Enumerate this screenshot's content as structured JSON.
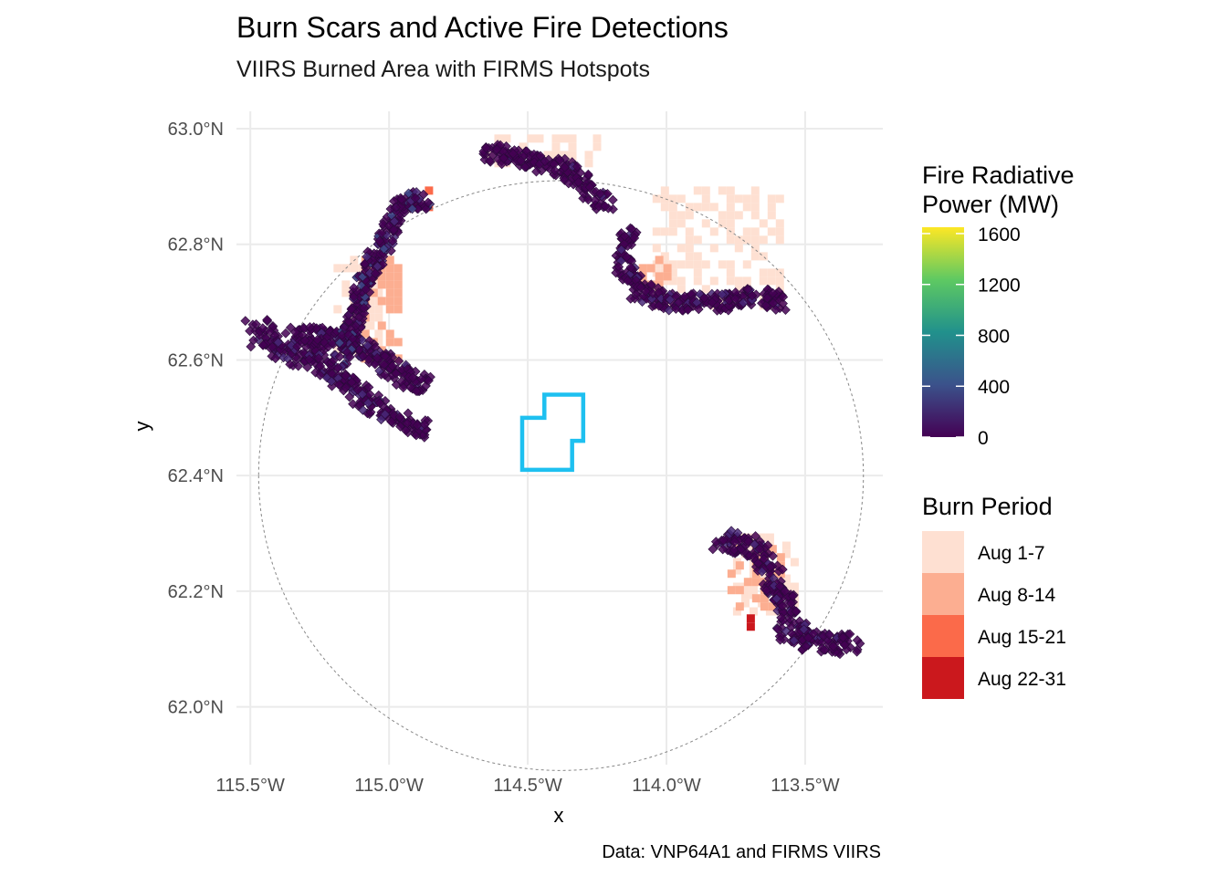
{
  "title": "Burn Scars and Active Fire Detections",
  "subtitle": "VIIRS Burned Area with FIRMS Hotspots",
  "caption": "Data: VNP64A1 and FIRMS VIIRS",
  "axes": {
    "x": {
      "label": "x",
      "range": [
        -115.55,
        -113.22
      ],
      "ticks": [
        -115.5,
        -115.0,
        -114.5,
        -114.0,
        -113.5
      ],
      "tick_labels": [
        "115.5°W",
        "115.0°W",
        "114.5°W",
        "114.0°W",
        "113.5°W"
      ]
    },
    "y": {
      "label": "y",
      "range": [
        61.9,
        63.03
      ],
      "ticks": [
        62.0,
        62.2,
        62.4,
        62.6,
        62.8,
        63.0
      ],
      "tick_labels": [
        "62.0°N",
        "62.2°N",
        "62.4°N",
        "62.6°N",
        "62.8°N",
        "63.0°N"
      ]
    },
    "grid": true
  },
  "legends": {
    "frp": {
      "title_lines": [
        "Fire Radiative",
        "Power (MW)"
      ],
      "ticks": [
        1600,
        1200,
        800,
        400,
        0
      ],
      "range": [
        0,
        1650
      ],
      "colormap": "viridis",
      "colors": [
        "#440154",
        "#3b528b",
        "#21918c",
        "#5ec962",
        "#fde725"
      ]
    },
    "burn": {
      "title": "Burn Period",
      "items": [
        {
          "label": "Aug 1-7",
          "color": "#fee0d2"
        },
        {
          "label": "Aug 8-14",
          "color": "#fcae91"
        },
        {
          "label": "Aug 15-21",
          "color": "#fb6a4a"
        },
        {
          "label": "Aug 22-31",
          "color": "#cb181d"
        }
      ]
    }
  },
  "colors": {
    "study_area_outline": "#1ec0f0",
    "buffer_outline": "#888888",
    "hotspot_fill": "#440154",
    "gridline": "#ebebeb"
  },
  "chart_data": {
    "type": "map",
    "title": "Burn Scars and Active Fire Detections",
    "subtitle": "VIIRS Burned Area with FIRMS Hotspots",
    "xlabel": "x",
    "ylabel": "y",
    "xlim": [
      -115.55,
      -113.22
    ],
    "ylim": [
      61.9,
      63.03
    ],
    "buffer_circle": {
      "center_lon": -114.38,
      "center_lat": 62.4,
      "radius_lon": 1.09,
      "radius_lat": 0.51
    },
    "study_area_polygon": [
      [
        -114.52,
        62.41
      ],
      [
        -114.52,
        62.5
      ],
      [
        -114.44,
        62.5
      ],
      [
        -114.44,
        62.54
      ],
      [
        -114.3,
        62.54
      ],
      [
        -114.3,
        62.46
      ],
      [
        -114.34,
        62.46
      ],
      [
        -114.34,
        62.41
      ]
    ],
    "hotspot_clusters": [
      {
        "name": "west-arm",
        "path": [
          [
            -115.48,
            62.65
          ],
          [
            -115.37,
            62.62
          ],
          [
            -115.26,
            62.6
          ],
          [
            -115.18,
            62.57
          ]
        ],
        "width_deg": 0.05,
        "density": 8,
        "max_frp": 350
      },
      {
        "name": "west-central",
        "path": [
          [
            -115.35,
            62.64
          ],
          [
            -115.18,
            62.64
          ],
          [
            -115.08,
            62.62
          ],
          [
            -114.95,
            62.57
          ],
          [
            -114.87,
            62.55
          ]
        ],
        "width_deg": 0.04,
        "density": 8,
        "max_frp": 300
      },
      {
        "name": "west-south",
        "path": [
          [
            -115.18,
            62.57
          ],
          [
            -115.08,
            62.53
          ],
          [
            -114.98,
            62.5
          ],
          [
            -114.87,
            62.48
          ]
        ],
        "width_deg": 0.035,
        "density": 7,
        "max_frp": 250
      },
      {
        "name": "west-north",
        "path": [
          [
            -115.18,
            62.6
          ],
          [
            -115.12,
            62.68
          ],
          [
            -115.08,
            62.75
          ],
          [
            -115.02,
            62.8
          ],
          [
            -114.98,
            62.85
          ],
          [
            -114.93,
            62.88
          ],
          [
            -114.86,
            62.87
          ]
        ],
        "width_deg": 0.035,
        "density": 7,
        "max_frp": 500
      },
      {
        "name": "north-band",
        "path": [
          [
            -114.65,
            62.96
          ],
          [
            -114.55,
            62.95
          ],
          [
            -114.45,
            62.94
          ],
          [
            -114.35,
            62.93
          ],
          [
            -114.3,
            62.9
          ],
          [
            -114.22,
            62.87
          ]
        ],
        "width_deg": 0.035,
        "density": 7,
        "max_frp": 200
      },
      {
        "name": "northeast-arc",
        "path": [
          [
            -114.13,
            62.82
          ],
          [
            -114.16,
            62.77
          ],
          [
            -114.1,
            62.72
          ],
          [
            -114.0,
            62.7
          ],
          [
            -113.9,
            62.7
          ],
          [
            -113.78,
            62.7
          ],
          [
            -113.68,
            62.71
          ],
          [
            -113.58,
            62.7
          ]
        ],
        "width_deg": 0.035,
        "density": 7,
        "max_frp": 250
      },
      {
        "name": "southeast",
        "path": [
          [
            -113.8,
            62.29
          ],
          [
            -113.7,
            62.28
          ],
          [
            -113.62,
            62.23
          ],
          [
            -113.58,
            62.18
          ],
          [
            -113.55,
            62.13
          ],
          [
            -113.45,
            62.11
          ],
          [
            -113.33,
            62.11
          ]
        ],
        "width_deg": 0.045,
        "density": 8,
        "max_frp": 300
      }
    ],
    "burn_scar_patches": [
      {
        "period": "Aug 1-7",
        "lon_range": [
          -115.2,
          -115.05
        ],
        "lat_range": [
          62.62,
          62.78
        ]
      },
      {
        "period": "Aug 1-7",
        "lon_range": [
          -114.65,
          -114.25
        ],
        "lat_range": [
          62.94,
          62.99
        ]
      },
      {
        "period": "Aug 1-7",
        "lon_range": [
          -114.05,
          -113.6
        ],
        "lat_range": [
          62.7,
          62.9
        ]
      },
      {
        "period": "Aug 1-7",
        "lon_range": [
          -113.76,
          -113.55
        ],
        "lat_range": [
          62.16,
          62.3
        ]
      },
      {
        "period": "Aug 8-14",
        "lon_range": [
          -115.1,
          -114.98
        ],
        "lat_range": [
          62.6,
          62.78
        ]
      },
      {
        "period": "Aug 8-14",
        "lon_range": [
          -114.1,
          -114.0
        ],
        "lat_range": [
          62.72,
          62.78
        ]
      },
      {
        "period": "Aug 8-14",
        "lon_range": [
          -113.78,
          -113.6
        ],
        "lat_range": [
          62.18,
          62.28
        ]
      },
      {
        "period": "Aug 15-21",
        "lon_range": [
          -114.93,
          -114.87
        ],
        "lat_range": [
          62.86,
          62.9
        ]
      },
      {
        "period": "Aug 22-31",
        "lon_range": [
          -113.77,
          -113.7
        ],
        "lat_range": [
          62.14,
          62.16
        ]
      },
      {
        "period": "Aug 22-31",
        "lon_range": [
          -113.81,
          -113.76
        ],
        "lat_range": [
          62.1,
          62.12
        ]
      }
    ]
  }
}
